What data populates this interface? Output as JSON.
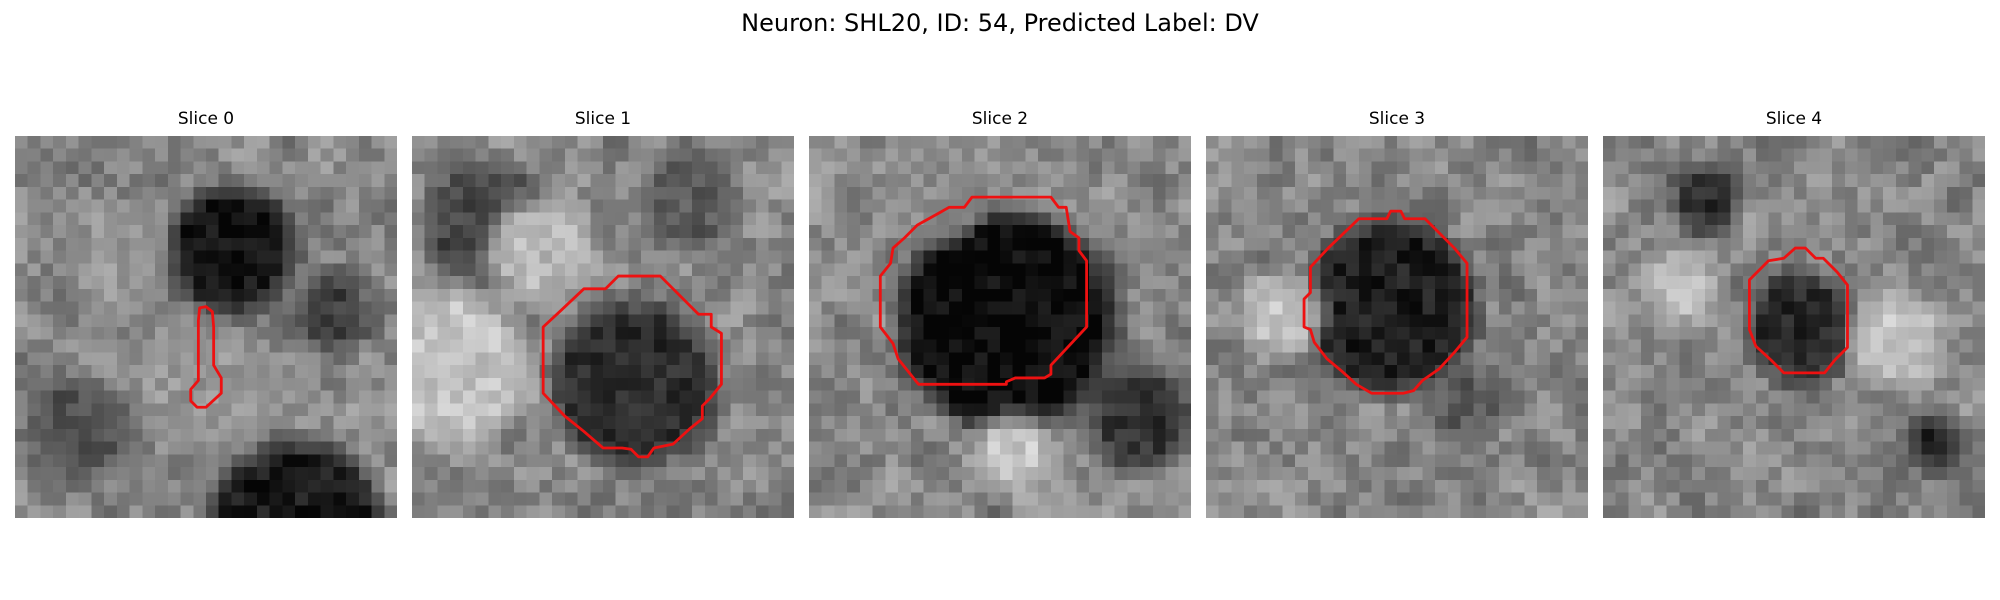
{
  "figure": {
    "title": "Neuron: SHL20, ID: 54, Predicted Label: DV"
  },
  "panels": [
    {
      "title": "Slice 0",
      "blobs": [
        {
          "cx": 17,
          "cy": 9,
          "r": 5,
          "v": 20
        },
        {
          "cx": 22,
          "cy": 31,
          "r": 7,
          "v": 25
        },
        {
          "cx": 5,
          "cy": 23,
          "r": 4,
          "v": 80
        },
        {
          "cx": 25,
          "cy": 14,
          "r": 3,
          "v": 60
        },
        {
          "cx": 8,
          "cy": 10,
          "r": 4,
          "v": 150
        },
        {
          "cx": 15,
          "cy": 20,
          "r": 5,
          "v": 150
        }
      ],
      "contour": [
        [
          14.5,
          13.5
        ],
        [
          15,
          13.4
        ],
        [
          15.5,
          13.8
        ],
        [
          15.6,
          15
        ],
        [
          15.6,
          18
        ],
        [
          16.2,
          19
        ],
        [
          16.2,
          20.2
        ],
        [
          15,
          21.3
        ],
        [
          14.3,
          21.3
        ],
        [
          13.8,
          20.8
        ],
        [
          13.8,
          19.9
        ],
        [
          14.4,
          19.2
        ],
        [
          14.4,
          14.5
        ]
      ]
    },
    {
      "title": "Slice 1",
      "blobs": [
        {
          "cx": 17.5,
          "cy": 19.5,
          "r": 6.5,
          "v": 45
        },
        {
          "cx": 6,
          "cy": 7,
          "r": 5,
          "v": 70
        },
        {
          "cx": 3,
          "cy": 18,
          "r": 6,
          "v": 195
        },
        {
          "cx": 10,
          "cy": 9,
          "r": 4,
          "v": 185
        },
        {
          "cx": 22,
          "cy": 5,
          "r": 4,
          "v": 90
        }
      ],
      "contour": [
        [
          13.5,
          12
        ],
        [
          15.2,
          12
        ],
        [
          16.2,
          11
        ],
        [
          19.5,
          11
        ],
        [
          22.5,
          14
        ],
        [
          23.5,
          14
        ],
        [
          23.5,
          15
        ],
        [
          24.3,
          15.5
        ],
        [
          24.3,
          19.5
        ],
        [
          23.4,
          20.6
        ],
        [
          22.8,
          21.2
        ],
        [
          22.8,
          22.2
        ],
        [
          21.8,
          23
        ],
        [
          20.5,
          24.2
        ],
        [
          19,
          24.5
        ],
        [
          18.5,
          25.2
        ],
        [
          17.8,
          25.2
        ],
        [
          17.2,
          24.6
        ],
        [
          16.5,
          24.5
        ],
        [
          15,
          24.5
        ],
        [
          13.5,
          23.2
        ],
        [
          12,
          22
        ],
        [
          10.3,
          20.2
        ],
        [
          10.3,
          15
        ],
        [
          11.7,
          13.7
        ]
      ]
    },
    {
      "title": "Slice 2",
      "blobs": [
        {
          "cx": 15.5,
          "cy": 14.5,
          "r": 8.5,
          "v": 10
        },
        {
          "cx": 26,
          "cy": 22,
          "r": 4,
          "v": 50
        },
        {
          "cx": 10,
          "cy": 4,
          "r": 4,
          "v": 140
        },
        {
          "cx": 16,
          "cy": 25,
          "r": 3,
          "v": 200
        }
      ],
      "contour": [
        [
          10.3,
          6
        ],
        [
          11,
          5.6
        ],
        [
          12.2,
          5.6
        ],
        [
          12.8,
          4.8
        ],
        [
          19,
          4.8
        ],
        [
          19.6,
          5.6
        ],
        [
          20.2,
          5.6
        ],
        [
          20.5,
          7.5
        ],
        [
          21.2,
          8
        ],
        [
          21.2,
          9
        ],
        [
          21.8,
          9.8
        ],
        [
          21.8,
          15
        ],
        [
          19,
          18
        ],
        [
          19,
          18.7
        ],
        [
          18.5,
          19
        ],
        [
          16.2,
          19
        ],
        [
          15.5,
          19.3
        ],
        [
          15.5,
          19.5
        ],
        [
          8.6,
          19.5
        ],
        [
          7,
          17.5
        ],
        [
          6.6,
          16.3
        ],
        [
          5.6,
          15
        ],
        [
          5.6,
          11
        ],
        [
          6.4,
          10
        ],
        [
          6.6,
          8.8
        ],
        [
          7.5,
          8
        ],
        [
          8.5,
          7
        ]
      ]
    },
    {
      "title": "Slice 3",
      "blobs": [
        {
          "cx": 14.5,
          "cy": 13.5,
          "r": 6.8,
          "v": 30
        },
        {
          "cx": 20,
          "cy": 21,
          "r": 3,
          "v": 90
        },
        {
          "cx": 6,
          "cy": 14,
          "r": 3,
          "v": 200
        }
      ],
      "contour": [
        [
          9.6,
          8.8
        ],
        [
          12,
          6.5
        ],
        [
          14.2,
          6.5
        ],
        [
          14.5,
          5.9
        ],
        [
          15.3,
          5.9
        ],
        [
          15.6,
          6.5
        ],
        [
          17.2,
          6.5
        ],
        [
          18.3,
          7.6
        ],
        [
          19.5,
          8.8
        ],
        [
          20.5,
          10
        ],
        [
          20.5,
          15.8
        ],
        [
          19.5,
          17
        ],
        [
          18.3,
          18.3
        ],
        [
          17,
          19.2
        ],
        [
          16.3,
          20
        ],
        [
          15.5,
          20.2
        ],
        [
          13,
          20.2
        ],
        [
          11.8,
          19.5
        ],
        [
          10.7,
          18.5
        ],
        [
          9.5,
          17.5
        ],
        [
          8.5,
          16.2
        ],
        [
          8.2,
          15.2
        ],
        [
          7.7,
          15
        ],
        [
          7.7,
          12.8
        ],
        [
          8.2,
          12.3
        ],
        [
          8.2,
          10.3
        ]
      ]
    },
    {
      "title": "Slice 4",
      "blobs": [
        {
          "cx": 15.5,
          "cy": 15,
          "r": 4.2,
          "v": 40
        },
        {
          "cx": 8,
          "cy": 5,
          "r": 2.5,
          "v": 40
        },
        {
          "cx": 26,
          "cy": 24,
          "r": 2,
          "v": 30
        },
        {
          "cx": 23,
          "cy": 16,
          "r": 3.5,
          "v": 200
        },
        {
          "cx": 6,
          "cy": 12,
          "r": 3,
          "v": 185
        }
      ],
      "contour": [
        [
          11.5,
          11.3
        ],
        [
          13,
          9.8
        ],
        [
          14.2,
          9.6
        ],
        [
          15.1,
          8.8
        ],
        [
          15.9,
          8.8
        ],
        [
          16.7,
          9.6
        ],
        [
          17.3,
          9.6
        ],
        [
          18.4,
          10.7
        ],
        [
          19.2,
          11.7
        ],
        [
          19.2,
          16.6
        ],
        [
          18.2,
          17.6
        ],
        [
          17.4,
          18.6
        ],
        [
          14.2,
          18.6
        ],
        [
          13.2,
          17.6
        ],
        [
          12,
          16.5
        ],
        [
          11.5,
          15.2
        ]
      ]
    }
  ]
}
